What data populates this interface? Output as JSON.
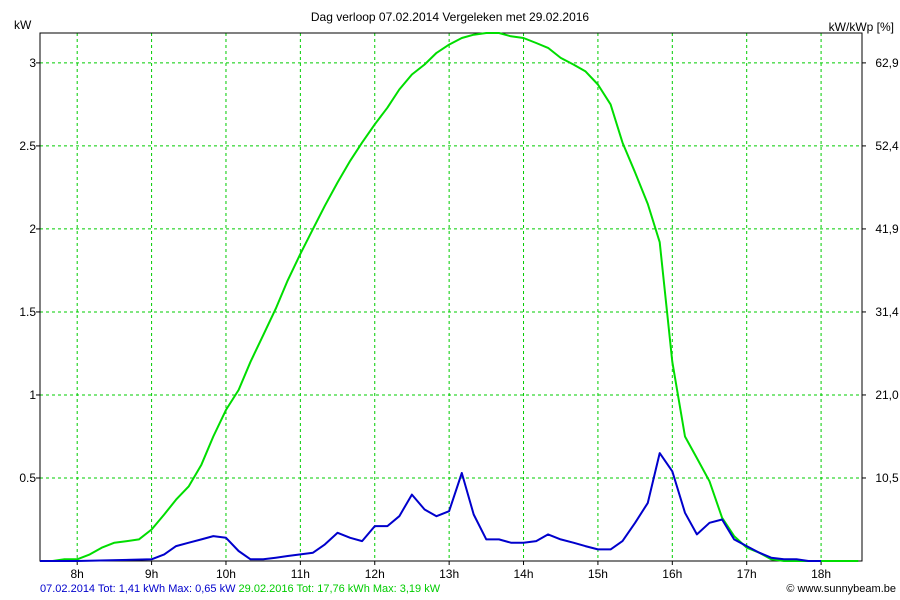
{
  "chart_data": {
    "type": "line",
    "title": "Dag  verloop 07.02.2014   Vergeleken met 29.02.2016",
    "ylabel": "kW",
    "ylabel_right": "kW/kWp [%]",
    "ylim": [
      0,
      3.18
    ],
    "xlim": [
      7.5,
      18.55
    ],
    "grid": true,
    "x_ticks": [
      8,
      9,
      10,
      11,
      12,
      13,
      14,
      15,
      16,
      17,
      18
    ],
    "x_tick_labels": [
      "8h",
      "9h",
      "10h",
      "11h",
      "12h",
      "13h",
      "14h",
      "15h",
      "16h",
      "17h",
      "18h"
    ],
    "y_ticks": [
      0.5,
      1,
      1.5,
      2,
      2.5,
      3
    ],
    "y_tick_labels": [
      "0.5",
      "1",
      "1.5",
      "2",
      "2.5",
      "3"
    ],
    "y2_ticks": [
      0.5,
      1,
      1.5,
      2,
      2.5,
      3
    ],
    "y2_tick_labels": [
      "10,5",
      "21,0",
      "31,4",
      "41,9",
      "52,4",
      "62,9"
    ],
    "series": [
      {
        "name": "07.02.2014",
        "color": "#0000cc",
        "summary": "07.02.2014 Tot: 1,41 kWh Max: 0,65 kW",
        "x": [
          7.5,
          8.0,
          9.0,
          9.17,
          9.33,
          9.5,
          9.67,
          9.83,
          10.0,
          10.17,
          10.33,
          10.5,
          10.67,
          10.83,
          11.0,
          11.17,
          11.33,
          11.5,
          11.67,
          11.83,
          12.0,
          12.17,
          12.33,
          12.5,
          12.67,
          12.83,
          13.0,
          13.17,
          13.33,
          13.5,
          13.67,
          13.83,
          14.0,
          14.17,
          14.33,
          14.5,
          14.67,
          14.83,
          15.0,
          15.17,
          15.33,
          15.5,
          15.67,
          15.83,
          16.0,
          16.17,
          16.33,
          16.5,
          16.67,
          16.83,
          17.0,
          17.17,
          17.33,
          17.5,
          17.67,
          17.83,
          18.0
        ],
        "y": [
          0,
          0,
          0.01,
          0.04,
          0.09,
          0.11,
          0.13,
          0.15,
          0.14,
          0.06,
          0.01,
          0.01,
          0.02,
          0.03,
          0.04,
          0.05,
          0.1,
          0.17,
          0.14,
          0.12,
          0.21,
          0.21,
          0.27,
          0.4,
          0.31,
          0.27,
          0.3,
          0.53,
          0.28,
          0.13,
          0.13,
          0.11,
          0.11,
          0.12,
          0.16,
          0.13,
          0.11,
          0.09,
          0.07,
          0.07,
          0.12,
          0.23,
          0.35,
          0.65,
          0.54,
          0.29,
          0.16,
          0.23,
          0.25,
          0.13,
          0.09,
          0.05,
          0.02,
          0.01,
          0.01,
          0.0,
          0.0
        ]
      },
      {
        "name": "29.02.2016",
        "color": "#00dd00",
        "summary": "29.02.2016 Tot: 17,76 kWh Max: 3,19 kW",
        "x": [
          7.5,
          7.67,
          7.83,
          8.0,
          8.17,
          8.33,
          8.5,
          8.67,
          8.83,
          9.0,
          9.17,
          9.33,
          9.5,
          9.67,
          9.83,
          10.0,
          10.17,
          10.33,
          10.5,
          10.67,
          10.83,
          11.0,
          11.17,
          11.33,
          11.5,
          11.67,
          11.83,
          12.0,
          12.17,
          12.33,
          12.5,
          12.67,
          12.83,
          13.0,
          13.17,
          13.33,
          13.5,
          13.67,
          13.83,
          14.0,
          14.17,
          14.33,
          14.5,
          14.67,
          14.83,
          15.0,
          15.17,
          15.33,
          15.5,
          15.67,
          15.83,
          16.0,
          16.17,
          16.33,
          16.5,
          16.67,
          16.83,
          17.0,
          17.17,
          17.33,
          17.5,
          17.67,
          17.83,
          18.0,
          18.17,
          18.33,
          18.5
        ],
        "y": [
          0,
          0,
          0.01,
          0.01,
          0.04,
          0.08,
          0.11,
          0.12,
          0.13,
          0.19,
          0.28,
          0.37,
          0.45,
          0.58,
          0.75,
          0.91,
          1.03,
          1.2,
          1.36,
          1.52,
          1.69,
          1.85,
          2.0,
          2.14,
          2.28,
          2.41,
          2.52,
          2.63,
          2.73,
          2.84,
          2.93,
          2.99,
          3.06,
          3.11,
          3.15,
          3.17,
          3.18,
          3.18,
          3.16,
          3.15,
          3.12,
          3.09,
          3.03,
          2.99,
          2.95,
          2.87,
          2.75,
          2.52,
          2.34,
          2.15,
          1.92,
          1.2,
          0.75,
          0.62,
          0.48,
          0.26,
          0.15,
          0.08,
          0.05,
          0.01,
          0.0,
          0.0,
          0.0,
          0.0,
          0.0,
          0.0,
          0.0
        ]
      }
    ],
    "footer_copyright": "© www.sunnybeam.be"
  }
}
